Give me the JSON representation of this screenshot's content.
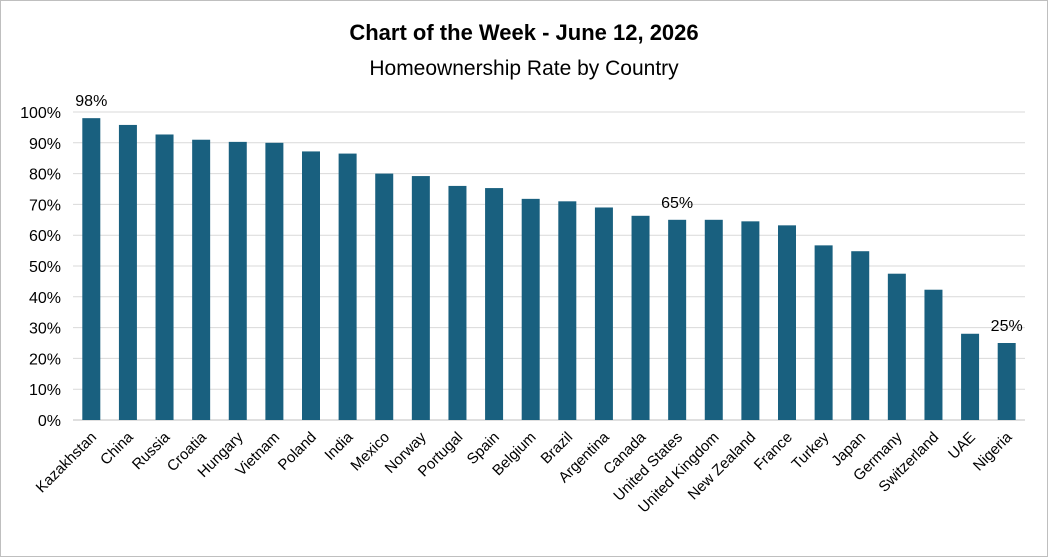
{
  "chart_data": {
    "type": "bar",
    "title": "Chart of the Week - June 12, 2026",
    "subtitle": "Homeownership Rate by Country",
    "xlabel": "",
    "ylabel": "",
    "categories": [
      "Kazakhstan",
      "China",
      "Russia",
      "Croatia",
      "Hungary",
      "Vietnam",
      "Poland",
      "India",
      "Mexico",
      "Norway",
      "Portugal",
      "Spain",
      "Belgium",
      "Brazil",
      "Argentina",
      "Canada",
      "United States",
      "United Kingdom",
      "New Zealand",
      "France",
      "Turkey",
      "Japan",
      "Germany",
      "Switzerland",
      "UAE",
      "Nigeria"
    ],
    "values": [
      98,
      95.8,
      92.7,
      91,
      90.3,
      90,
      87.2,
      86.5,
      80,
      79.2,
      76,
      75.3,
      71.8,
      71,
      69,
      66.3,
      65,
      65,
      64.5,
      63.2,
      56.7,
      54.8,
      47.5,
      42.3,
      28,
      25
    ],
    "ylim": [
      0,
      100
    ],
    "yticks": [
      "0%",
      "10%",
      "20%",
      "30%",
      "40%",
      "50%",
      "60%",
      "70%",
      "80%",
      "90%",
      "100%"
    ],
    "data_labels": [
      {
        "category": "Kazakhstan",
        "text": "98%"
      },
      {
        "category": "United States",
        "text": "65%"
      },
      {
        "category": "Nigeria",
        "text": "25%"
      }
    ],
    "bar_color": "#19607f",
    "grid_color": "#d9d9d9",
    "grid": true,
    "legend": "none"
  }
}
